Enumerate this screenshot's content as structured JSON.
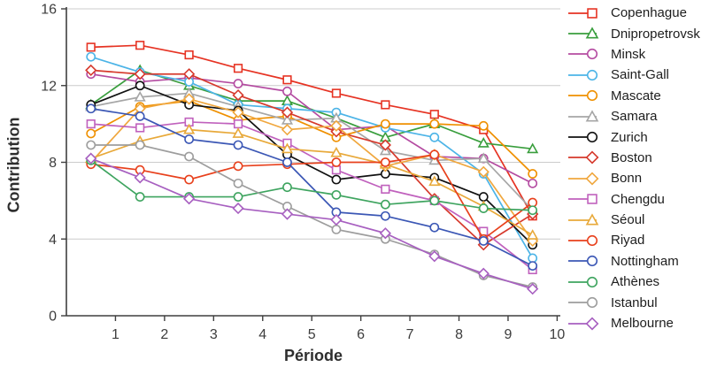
{
  "chart_data": {
    "type": "line",
    "title": "",
    "xlabel": "Période",
    "ylabel": "Contribution",
    "xlim": [
      0,
      10.1
    ],
    "ylim": [
      0,
      16
    ],
    "x_ticks": [
      1,
      2,
      3,
      4,
      5,
      6,
      7,
      8,
      9,
      10
    ],
    "y_ticks": [
      0,
      4,
      8,
      12,
      16
    ],
    "grid": "horizontal",
    "legend_position": "right",
    "x": [
      0.5,
      1.5,
      2.5,
      3.5,
      4.5,
      5.5,
      6.5,
      7.5,
      8.5,
      9.5
    ],
    "series": [
      {
        "name": "Copenhague",
        "color": "#e63323",
        "marker": "square",
        "values": [
          14.0,
          14.1,
          13.6,
          12.9,
          12.3,
          11.6,
          11.0,
          10.5,
          9.7,
          5.2
        ]
      },
      {
        "name": "Dnipropetrovsk",
        "color": "#399e3d",
        "marker": "triangle",
        "values": [
          11.0,
          12.8,
          12.0,
          11.2,
          11.2,
          10.3,
          9.3,
          10.0,
          9.0,
          8.7
        ]
      },
      {
        "name": "Minsk",
        "color": "#b44ba1",
        "marker": "circle",
        "values": [
          12.6,
          12.2,
          12.4,
          12.1,
          11.7,
          9.7,
          9.9,
          8.3,
          8.2,
          6.9
        ]
      },
      {
        "name": "Saint-Gall",
        "color": "#4cb4e7",
        "marker": "circle",
        "values": [
          13.5,
          12.7,
          12.2,
          11.0,
          10.8,
          10.6,
          9.8,
          9.3,
          7.4,
          3.0
        ]
      },
      {
        "name": "Mascate",
        "color": "#ef9000",
        "marker": "circle",
        "values": [
          9.5,
          10.9,
          11.2,
          10.2,
          10.4,
          9.3,
          10.0,
          10.0,
          9.9,
          7.4
        ]
      },
      {
        "name": "Samara",
        "color": "#a6a6a6",
        "marker": "triangle",
        "values": [
          10.9,
          11.4,
          11.6,
          10.9,
          10.2,
          10.3,
          8.6,
          8.1,
          8.2,
          5.5
        ]
      },
      {
        "name": "Zurich",
        "color": "#111111",
        "marker": "circle",
        "values": [
          11.0,
          12.0,
          11.0,
          10.7,
          8.4,
          7.1,
          7.4,
          7.2,
          6.2,
          3.7
        ]
      },
      {
        "name": "Boston",
        "color": "#d6392c",
        "marker": "diamond",
        "values": [
          12.8,
          12.6,
          12.6,
          11.5,
          10.6,
          9.6,
          8.9,
          6.1,
          3.7,
          5.3
        ]
      },
      {
        "name": "Bonn",
        "color": "#f0a73e",
        "marker": "diamond",
        "values": [
          8.0,
          10.8,
          11.3,
          10.6,
          9.7,
          9.9,
          7.8,
          8.4,
          7.5,
          3.9
        ]
      },
      {
        "name": "Chengdu",
        "color": "#c061bd",
        "marker": "square",
        "values": [
          10.0,
          9.8,
          10.1,
          10.0,
          9.0,
          7.6,
          6.6,
          6.0,
          4.4,
          2.4
        ]
      },
      {
        "name": "Séoul",
        "color": "#e8a93a",
        "marker": "triangle",
        "values": [
          8.2,
          9.1,
          9.7,
          9.5,
          8.7,
          8.5,
          7.9,
          7.0,
          5.7,
          4.2
        ]
      },
      {
        "name": "Riyad",
        "color": "#e8401c",
        "marker": "circle",
        "values": [
          7.9,
          7.6,
          7.1,
          7.8,
          7.9,
          8.0,
          8.0,
          8.4,
          4.0,
          5.9
        ]
      },
      {
        "name": "Nottingham",
        "color": "#3b57b5",
        "marker": "circle",
        "values": [
          10.8,
          10.4,
          9.2,
          8.9,
          8.0,
          5.4,
          5.2,
          4.6,
          3.9,
          2.6
        ]
      },
      {
        "name": "Athènes",
        "color": "#3ea45f",
        "marker": "circle",
        "values": [
          8.1,
          6.2,
          6.2,
          6.2,
          6.7,
          6.3,
          5.8,
          6.0,
          5.6,
          5.5
        ]
      },
      {
        "name": "Istanbul",
        "color": "#9d9d9d",
        "marker": "circle",
        "values": [
          8.9,
          8.9,
          8.3,
          6.9,
          5.7,
          4.5,
          4.0,
          3.2,
          2.1,
          1.5
        ]
      },
      {
        "name": "Melbourne",
        "color": "#a75fc0",
        "marker": "diamond",
        "values": [
          8.2,
          7.2,
          6.1,
          5.6,
          5.3,
          5.0,
          4.3,
          3.1,
          2.2,
          1.4
        ]
      }
    ],
    "colors": {
      "grid": "#cccccc",
      "axis": "#3f3f3f",
      "tick_label": "#3d3d3d"
    }
  }
}
